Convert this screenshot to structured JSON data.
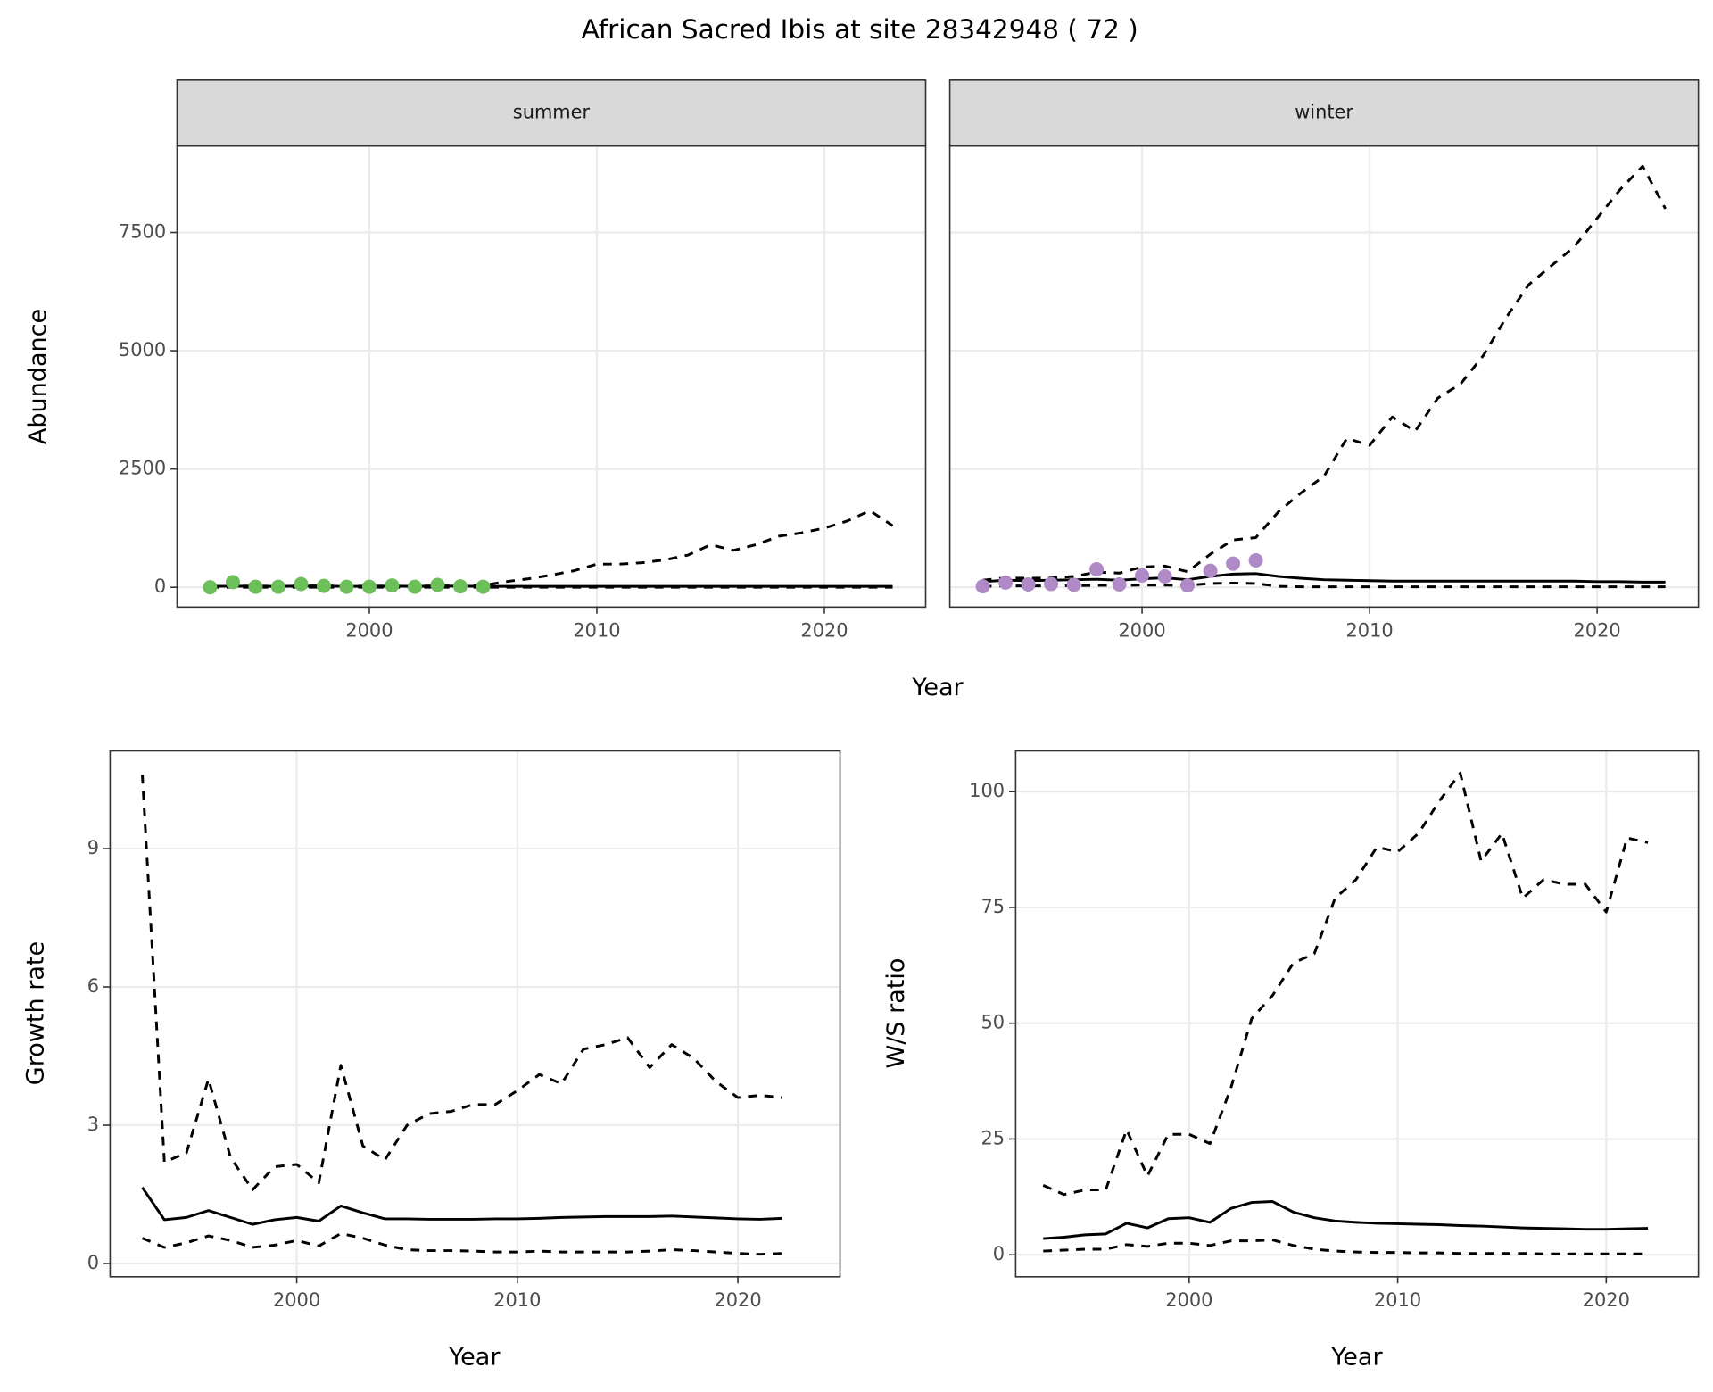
{
  "title": "African Sacred Ibis at site 28342948 ( 72 )",
  "chart_data": [
    {
      "type": "line",
      "facet": "summer",
      "x_label": "Year",
      "y_label": "Abundance",
      "x": [
        1993,
        1994,
        1995,
        1996,
        1997,
        1998,
        1999,
        2000,
        2001,
        2002,
        2003,
        2004,
        2005,
        2006,
        2007,
        2008,
        2009,
        2010,
        2011,
        2012,
        2013,
        2014,
        2015,
        2016,
        2017,
        2018,
        2019,
        2020,
        2021,
        2022,
        2023
      ],
      "xlim": [
        1991.55,
        2024.45
      ],
      "xticks": [
        2000,
        2010,
        2020
      ],
      "ylim": [
        -418,
        9327
      ],
      "yticks": [
        0,
        2500,
        5000,
        7500
      ],
      "ytick_labels": true,
      "grid": true,
      "series": [
        {
          "style": "dashed",
          "color": "#000000",
          "values": [
            0,
            0,
            0,
            0,
            0,
            0,
            0,
            0,
            0,
            0,
            0,
            0,
            0,
            0,
            0,
            0,
            0,
            0,
            0,
            0,
            0,
            0,
            0,
            0,
            0,
            0,
            0,
            0,
            0,
            0,
            0
          ]
        },
        {
          "style": "dashed",
          "color": "#000000",
          "values": [
            20,
            30,
            25,
            25,
            30,
            30,
            25,
            25,
            30,
            25,
            30,
            30,
            40,
            120,
            180,
            260,
            350,
            490,
            490,
            520,
            580,
            680,
            900,
            780,
            900,
            1080,
            1150,
            1250,
            1400,
            1620,
            1300
          ]
        },
        {
          "style": "solid",
          "color": "#000000",
          "values": [
            20,
            25,
            20,
            20,
            25,
            25,
            20,
            20,
            25,
            20,
            25,
            25,
            20,
            20,
            20,
            20,
            20,
            20,
            20,
            20,
            20,
            20,
            20,
            20,
            20,
            20,
            20,
            20,
            20,
            20,
            20
          ]
        },
        {
          "style": "points",
          "color": "#6dbf5a",
          "values": [
            0,
            110,
            10,
            10,
            70,
            30,
            10,
            10,
            40,
            10,
            50,
            20,
            10,
            null,
            null,
            null,
            null,
            null,
            null,
            null,
            null,
            null,
            null,
            null,
            null,
            null,
            null,
            null,
            null,
            null,
            null
          ]
        }
      ]
    },
    {
      "type": "line",
      "facet": "winter",
      "x": [
        1993,
        1994,
        1995,
        1996,
        1997,
        1998,
        1999,
        2000,
        2001,
        2002,
        2003,
        2004,
        2005,
        2006,
        2007,
        2008,
        2009,
        2010,
        2011,
        2012,
        2013,
        2014,
        2015,
        2016,
        2017,
        2018,
        2019,
        2020,
        2021,
        2022,
        2023
      ],
      "xlim": [
        1991.55,
        2024.45
      ],
      "xticks": [
        2000,
        2010,
        2020
      ],
      "ylim": [
        -418,
        9327
      ],
      "yticks": [
        0,
        2500,
        5000,
        7500
      ],
      "ytick_labels": false,
      "grid": true,
      "series": [
        {
          "style": "dashed",
          "color": "#000000",
          "values": [
            20,
            30,
            30,
            30,
            35,
            40,
            40,
            45,
            45,
            40,
            80,
            90,
            80,
            20,
            10,
            10,
            10,
            10,
            10,
            10,
            10,
            10,
            10,
            10,
            10,
            10,
            10,
            10,
            10,
            10,
            10
          ]
        },
        {
          "style": "dashed",
          "color": "#000000",
          "values": [
            150,
            200,
            190,
            200,
            230,
            320,
            300,
            430,
            450,
            330,
            700,
            1000,
            1050,
            1600,
            2000,
            2350,
            3150,
            3000,
            3600,
            3300,
            4000,
            4300,
            4900,
            5700,
            6400,
            6800,
            7200,
            7800,
            8400,
            8900,
            8000
          ]
        },
        {
          "style": "solid",
          "color": "#000000",
          "values": [
            120,
            150,
            140,
            150,
            160,
            170,
            150,
            180,
            200,
            160,
            230,
            280,
            290,
            230,
            190,
            160,
            150,
            140,
            130,
            130,
            130,
            130,
            130,
            130,
            130,
            130,
            130,
            120,
            120,
            110,
            110
          ]
        },
        {
          "style": "points",
          "color": "#b08ac7",
          "values": [
            20,
            100,
            60,
            70,
            50,
            380,
            60,
            250,
            230,
            40,
            350,
            500,
            570,
            null,
            null,
            null,
            null,
            null,
            null,
            null,
            null,
            null,
            null,
            null,
            null,
            null,
            null,
            null,
            null,
            null,
            null
          ]
        }
      ]
    },
    {
      "type": "line",
      "x_label": "Year",
      "y_label": "Growth rate",
      "x": [
        1993,
        1994,
        1995,
        1996,
        1997,
        1998,
        1999,
        2000,
        2001,
        2002,
        2003,
        2004,
        2005,
        2006,
        2007,
        2008,
        2009,
        2010,
        2011,
        2012,
        2013,
        2014,
        2015,
        2016,
        2017,
        2018,
        2019,
        2020,
        2021,
        2022
      ],
      "xlim": [
        1991.54,
        2024.63
      ],
      "xticks": [
        2000,
        2010,
        2020
      ],
      "ylim": [
        -0.286,
        11.12
      ],
      "yticks": [
        0,
        3,
        6,
        9
      ],
      "ytick_labels": true,
      "grid": true,
      "series": [
        {
          "style": "dashed",
          "color": "#000000",
          "values": [
            10.6,
            2.2,
            2.4,
            4.0,
            2.3,
            1.6,
            2.1,
            2.15,
            1.75,
            4.3,
            2.55,
            2.25,
            3.0,
            3.25,
            3.3,
            3.45,
            3.45,
            3.75,
            4.1,
            3.9,
            4.65,
            4.75,
            4.9,
            4.25,
            4.75,
            4.45,
            3.95,
            3.6,
            3.65,
            3.6
          ]
        },
        {
          "style": "solid",
          "color": "#000000",
          "values": [
            1.65,
            0.95,
            1.0,
            1.15,
            1.0,
            0.85,
            0.95,
            1.0,
            0.92,
            1.25,
            1.1,
            0.97,
            0.97,
            0.96,
            0.96,
            0.96,
            0.97,
            0.97,
            0.98,
            1.0,
            1.01,
            1.02,
            1.02,
            1.02,
            1.03,
            1.01,
            0.99,
            0.97,
            0.96,
            0.98
          ]
        },
        {
          "style": "dashed",
          "color": "#000000",
          "values": [
            0.55,
            0.35,
            0.45,
            0.6,
            0.5,
            0.35,
            0.4,
            0.5,
            0.38,
            0.65,
            0.55,
            0.4,
            0.3,
            0.28,
            0.28,
            0.27,
            0.25,
            0.25,
            0.27,
            0.25,
            0.25,
            0.25,
            0.25,
            0.27,
            0.3,
            0.28,
            0.25,
            0.22,
            0.2,
            0.22
          ]
        }
      ]
    },
    {
      "type": "line",
      "x_label": "Year",
      "y_label": "W/S ratio",
      "x": [
        1993,
        1994,
        1995,
        1996,
        1997,
        1998,
        1999,
        2000,
        2001,
        2002,
        2003,
        2004,
        2005,
        2006,
        2007,
        2008,
        2009,
        2010,
        2011,
        2012,
        2013,
        2014,
        2015,
        2016,
        2017,
        2018,
        2019,
        2020,
        2021,
        2022
      ],
      "xlim": [
        1991.68,
        2024.42
      ],
      "xticks": [
        2000,
        2010,
        2020
      ],
      "ylim": [
        -4.74,
        108.8
      ],
      "yticks": [
        0,
        25,
        50,
        75,
        100
      ],
      "ytick_labels": true,
      "grid": true,
      "series": [
        {
          "style": "dashed",
          "color": "#000000",
          "values": [
            15,
            13,
            14,
            14,
            27,
            17,
            26,
            26,
            24,
            36,
            51,
            56,
            63,
            65,
            77,
            81,
            88,
            87,
            91,
            98,
            104,
            85,
            91,
            77,
            81,
            80,
            80,
            74,
            90,
            89
          ]
        },
        {
          "style": "solid",
          "color": "#000000",
          "values": [
            3.5,
            3.8,
            4.3,
            4.5,
            6.8,
            5.8,
            7.8,
            8.0,
            7.0,
            10,
            11.3,
            11.5,
            9.2,
            8.0,
            7.3,
            7.0,
            6.8,
            6.7,
            6.6,
            6.5,
            6.3,
            6.2,
            6.0,
            5.8,
            5.7,
            5.6,
            5.5,
            5.5,
            5.6,
            5.7
          ]
        },
        {
          "style": "dashed",
          "color": "#000000",
          "values": [
            0.8,
            1.0,
            1.2,
            1.2,
            2.2,
            1.8,
            2.5,
            2.5,
            2.0,
            3.0,
            3.0,
            3.2,
            2.0,
            1.2,
            0.8,
            0.6,
            0.5,
            0.5,
            0.4,
            0.4,
            0.3,
            0.3,
            0.3,
            0.3,
            0.2,
            0.2,
            0.2,
            0.2,
            0.2,
            0.2
          ]
        }
      ]
    }
  ]
}
